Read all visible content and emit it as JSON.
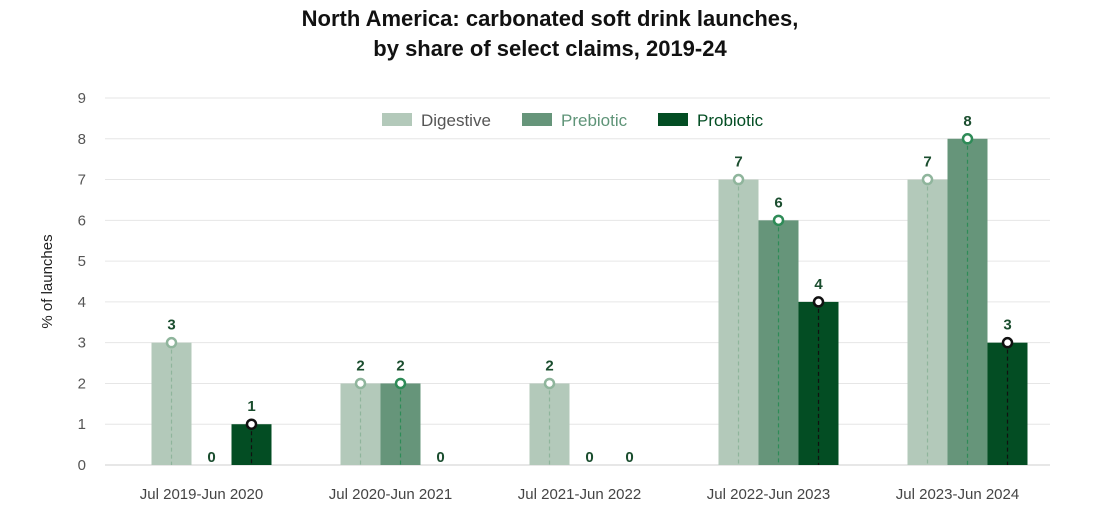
{
  "chart_data": {
    "type": "bar",
    "title_line1": "North America: carbonated soft drink launches,",
    "title_line2": "by share of select claims, 2019-24",
    "ylabel": "% of launches",
    "xlabel": "",
    "ylim": [
      0,
      9
    ],
    "yticks": [
      "0",
      "1",
      "2",
      "3",
      "4",
      "5",
      "6",
      "7",
      "8",
      "9"
    ],
    "grid": true,
    "legend_position": "top-center",
    "categories": [
      "Jul 2019-Jun 2020",
      "Jul 2020-Jun 2021",
      "Jul 2021-Jun 2022",
      "Jul 2022-Jun 2023",
      "Jul 2023-Jun 2024"
    ],
    "series": [
      {
        "name": "Digestive",
        "values": [
          3,
          2,
          2,
          7,
          7
        ],
        "color": "#b3c9ba",
        "label_color": "#1a4d2e",
        "marker_color": "#8fb59c",
        "text_color": "#555555"
      },
      {
        "name": "Prebiotic",
        "values": [
          0,
          2,
          0,
          6,
          8
        ],
        "color": "#66957a",
        "label_color": "#1a4d2e",
        "marker_color": "#2e8b57",
        "text_color": "#5f9478"
      },
      {
        "name": "Probiotic",
        "values": [
          1,
          0,
          0,
          4,
          3
        ],
        "color": "#034d23",
        "label_color": "#1a4d2e",
        "marker_color": "#111111",
        "text_color": "#034d23"
      }
    ]
  }
}
